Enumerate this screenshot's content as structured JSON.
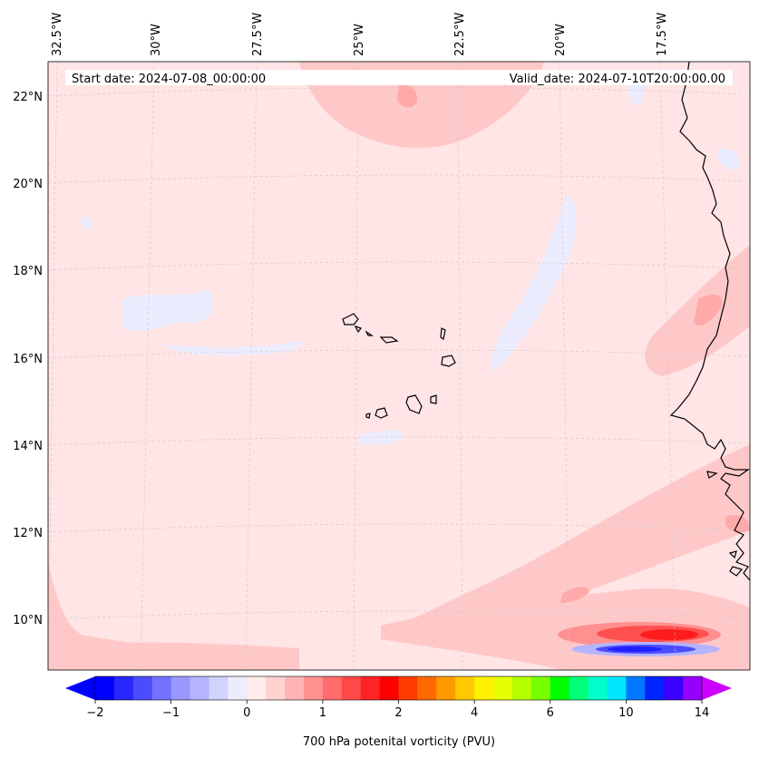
{
  "header": {
    "start_date": "Start date: 2024-07-08_00:00:00",
    "valid_date": "Valid_date: 2024-07-10T20:00:00.00"
  },
  "map": {
    "projection": "Lambert conformal (regional)",
    "longitude_labels": [
      "32.5°W",
      "30°W",
      "27.5°W",
      "25°W",
      "22.5°W",
      "20°W",
      "17.5°W"
    ],
    "latitude_labels": [
      "22°N",
      "20°N",
      "18°N",
      "16°N",
      "14°N",
      "12°N",
      "10°N"
    ],
    "features": [
      "Cape Verde islands",
      "West African coastline (Senegal, Gambia, Guinea-Bissau, Guinea)"
    ],
    "colors": {
      "background_field": "#ffe5e5",
      "light_red": "#ffc8c8",
      "medium_red": "#ff9090",
      "strong_red": "#ff2020",
      "light_blue": "#ececff",
      "medium_blue": "#8080ff",
      "strong_blue": "#2020ff",
      "coast": "#000000",
      "grid": "#c8c8c8"
    }
  },
  "colorbar": {
    "label": "700 hPa potenital vorticity (PVU)",
    "ticks": [
      "−2",
      "−1",
      "0",
      "1",
      "2",
      "4",
      "6",
      "10",
      "14"
    ],
    "colors": [
      "#0000ff",
      "#2626ff",
      "#4c4cff",
      "#7272ff",
      "#9898ff",
      "#b4b4ff",
      "#d2d2ff",
      "#ececff",
      "#ffecec",
      "#ffd2d2",
      "#ffb4b4",
      "#ff9090",
      "#ff6c6c",
      "#ff4848",
      "#ff2424",
      "#ff0000",
      "#ff3c00",
      "#ff6a00",
      "#ff9a00",
      "#ffc800",
      "#fff000",
      "#e6ff00",
      "#b4ff00",
      "#78ff00",
      "#00ff00",
      "#00ff78",
      "#00ffc8",
      "#00e6ff",
      "#0078ff",
      "#0024ff",
      "#3c00ff",
      "#9600ff"
    ],
    "extend_low": "#0000ff",
    "extend_high": "#cc00ff"
  }
}
